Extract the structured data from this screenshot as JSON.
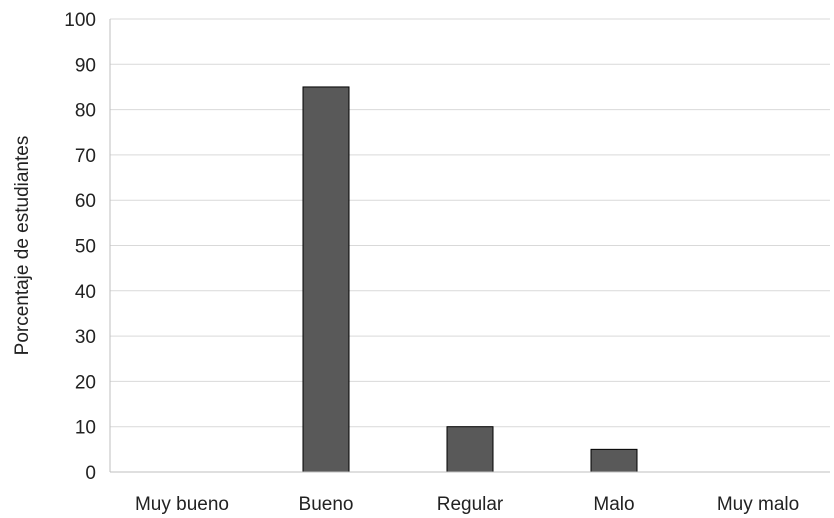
{
  "chart_data": {
    "type": "bar",
    "title": "",
    "xlabel": "",
    "ylabel": "Porcentaje de estudiantes",
    "categories": [
      "Muy bueno",
      "Bueno",
      "Regular",
      "Malo",
      "Muy malo"
    ],
    "values": [
      0,
      85,
      10,
      5,
      0
    ],
    "ylim": [
      0,
      100
    ],
    "yticks": [
      0,
      10,
      20,
      30,
      40,
      50,
      60,
      70,
      80,
      90,
      100
    ],
    "grid": true,
    "legend": "none",
    "bar_color": "#595959",
    "bar_outline": "#000000"
  }
}
